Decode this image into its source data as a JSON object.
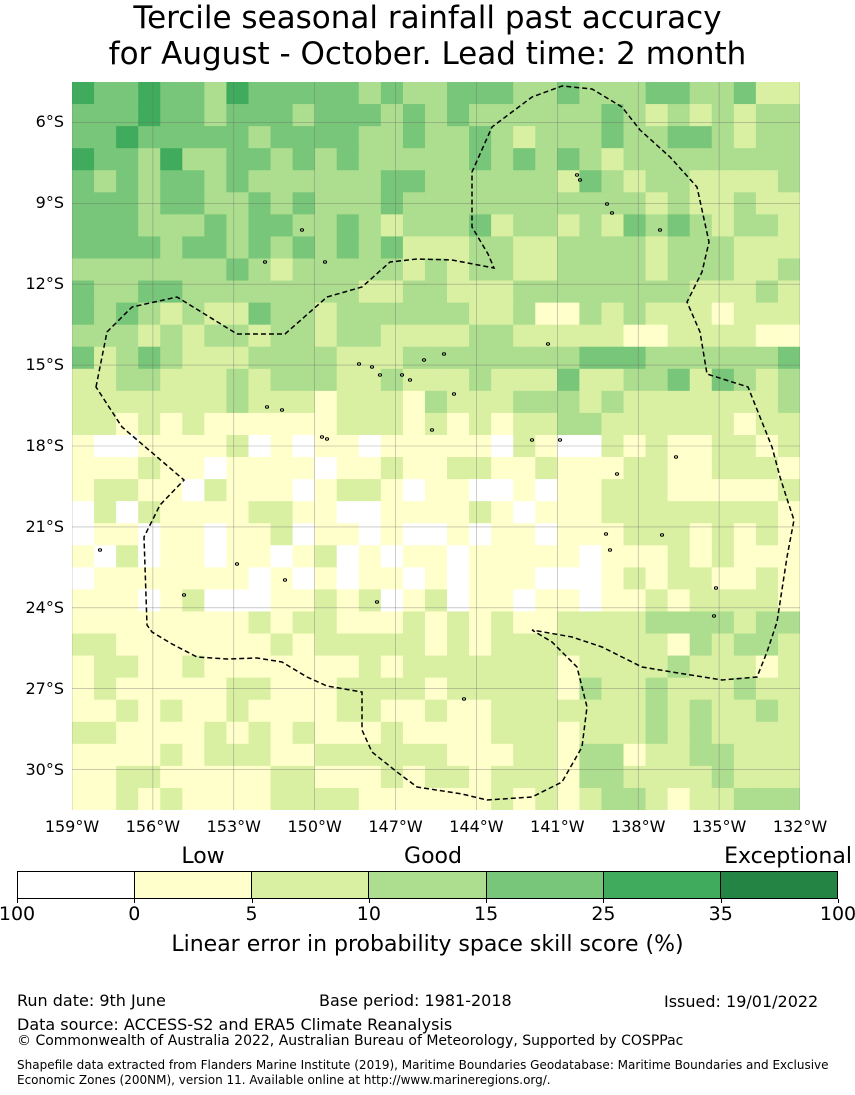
{
  "title": {
    "line1": "Tercile seasonal rainfall past accuracy",
    "line2": "for August - October. Lead time: 2 month"
  },
  "axes": {
    "lat_labels": [
      "6°S",
      "9°S",
      "12°S",
      "15°S",
      "18°S",
      "21°S",
      "24°S",
      "27°S",
      "30°S"
    ],
    "lon_labels": [
      "159°W",
      "156°W",
      "153°W",
      "150°W",
      "147°W",
      "144°W",
      "141°W",
      "138°W",
      "135°W",
      "132°W"
    ],
    "lat_range": [
      -31.5,
      -4.5
    ],
    "lon_range": [
      -159,
      -132
    ]
  },
  "legend": {
    "categories": [
      {
        "label": "Low"
      },
      {
        "label": "Good"
      },
      {
        "label": "Exceptional"
      }
    ],
    "bins": [
      {
        "from": "100",
        "to": "0",
        "color": "#ffffff"
      },
      {
        "from": "0",
        "to": "5",
        "color": "#ffffcc"
      },
      {
        "from": "5",
        "to": "10",
        "color": "#d9f0a3"
      },
      {
        "from": "10",
        "to": "15",
        "color": "#addd8e"
      },
      {
        "from": "15",
        "to": "25",
        "color": "#78c679"
      },
      {
        "from": "25",
        "to": "35",
        "color": "#41ab5d"
      },
      {
        "from": "35",
        "to": "100",
        "color": "#238443"
      }
    ],
    "tick_labels": [
      "100",
      "0",
      "5",
      "10",
      "15",
      "25",
      "35",
      "100"
    ],
    "title": "Linear error in probability space skill score (%)"
  },
  "footer": {
    "run_date": "Run date: 9th June",
    "base_period": "Base period: 1981-2018",
    "issued": "Issued: 19/01/2022",
    "data_source": "Data source: ACCESS-S2 and ERA5 Climate Reanalysis",
    "copyright": "© Commonwealth of Australia 2022, Australian Bureau of Meteorology, Supported by COSPPac",
    "shapefile": "Shapefile data extracted from Flanders Marine Institute (2019), Maritime Boundaries Geodatabase: Maritime Boundaries and Exclusive Economic Zones (200NM), version 11. Available online at http://www.marineregions.org/."
  }
}
